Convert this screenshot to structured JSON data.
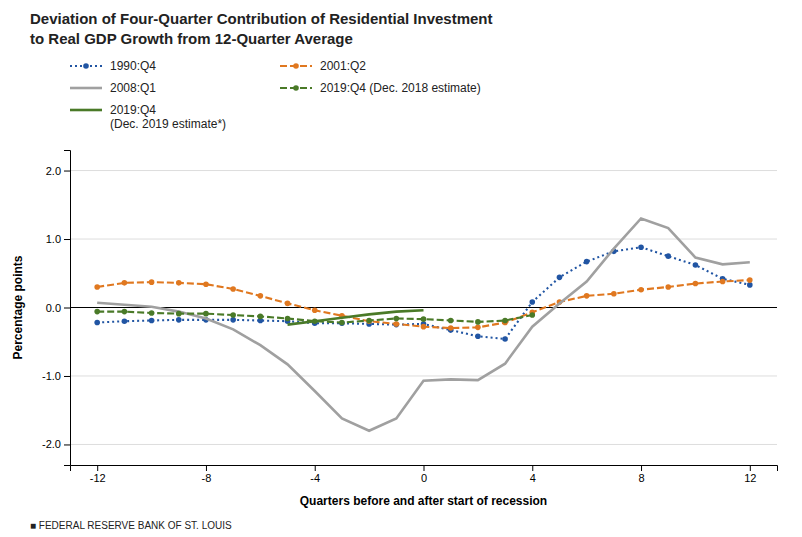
{
  "chart_data": {
    "type": "line",
    "title": [
      "Deviation of Four-Quarter Contribution of Residential Investment",
      "to Real GDP Growth from 12-Quarter Average"
    ],
    "x_label": "Quarters before and after start of recession",
    "y_label": "Percentage points",
    "footer": "■ FEDERAL RESERVE BANK OF ST. LOUIS",
    "x": [
      -12,
      -11,
      -10,
      -9,
      -8,
      -7,
      -6,
      -5,
      -4,
      -3,
      -2,
      -1,
      0,
      1,
      2,
      3,
      4,
      5,
      6,
      7,
      8,
      9,
      10,
      11,
      12
    ],
    "series": [
      {
        "name": "1990:Q4",
        "color": "#2155a3",
        "line_style": "dotted",
        "marker": "circle",
        "values": [
          -0.22,
          -0.2,
          -0.19,
          -0.18,
          -0.18,
          -0.18,
          -0.19,
          -0.2,
          -0.23,
          -0.23,
          -0.24,
          -0.25,
          -0.24,
          -0.33,
          -0.42,
          -0.46,
          0.08,
          0.44,
          0.67,
          0.82,
          0.88,
          0.75,
          0.62,
          0.42,
          0.33
        ]
      },
      {
        "name": "2001:Q2",
        "color": "#e07820",
        "line_style": "dashed",
        "marker": "circle",
        "values": [
          0.3,
          0.36,
          0.37,
          0.36,
          0.34,
          0.27,
          0.17,
          0.06,
          -0.04,
          -0.12,
          -0.2,
          -0.24,
          -0.28,
          -0.3,
          -0.29,
          -0.22,
          -0.07,
          0.08,
          0.17,
          0.2,
          0.26,
          0.3,
          0.35,
          0.38,
          0.4
        ]
      },
      {
        "name": "2008:Q1",
        "color": "#a0a0a0",
        "line_style": "solid",
        "values": [
          0.07,
          0.04,
          0.01,
          -0.06,
          -0.16,
          -0.32,
          -0.55,
          -0.83,
          -1.22,
          -1.62,
          -1.8,
          -1.62,
          -1.07,
          -1.05,
          -1.06,
          -0.82,
          -0.28,
          0.06,
          0.38,
          0.86,
          1.3,
          1.16,
          0.73,
          0.63,
          0.66
        ]
      },
      {
        "name": "2019:Q4 (Dec. 2018 estimate)",
        "color": "#4a7a28",
        "line_style": "dashed",
        "marker": "circle",
        "values": [
          -0.06,
          -0.06,
          -0.08,
          -0.09,
          -0.09,
          -0.11,
          -0.13,
          -0.16,
          -0.2,
          -0.22,
          -0.19,
          -0.16,
          -0.17,
          -0.19,
          -0.21,
          -0.19,
          -0.11,
          null,
          null,
          null,
          null,
          null,
          null,
          null,
          null
        ]
      },
      {
        "name": "2019:Q4\n(Dec. 2019 estimate*)",
        "color": "#4a7a28",
        "line_style": "solid",
        "values": [
          null,
          null,
          null,
          null,
          null,
          null,
          null,
          -0.25,
          -0.2,
          -0.15,
          -0.1,
          -0.06,
          -0.04,
          null,
          null,
          null,
          null,
          null,
          null,
          null,
          null,
          null,
          null,
          null,
          null
        ]
      }
    ],
    "xlim": [
      -13,
      13
    ],
    "ylim": [
      -2.3,
      2.3
    ],
    "xticks": [
      -12,
      -8,
      -4,
      0,
      4,
      8,
      12
    ],
    "yticks": [
      {
        "value": -2.0,
        "label": "-2.0"
      },
      {
        "value": -1.0,
        "label": "-1.0"
      },
      {
        "value": 0.0,
        "label": "0.0"
      },
      {
        "value": 1.0,
        "label": "1.0"
      },
      {
        "value": 2.0,
        "label": "2.0"
      }
    ],
    "grid": true,
    "legend": "top-left"
  }
}
